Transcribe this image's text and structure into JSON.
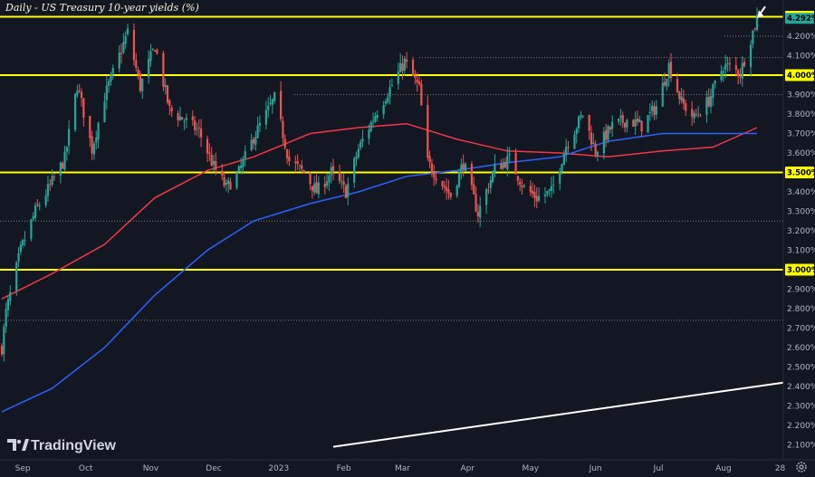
{
  "chart_data": {
    "type": "candlestick",
    "title": "Daily - US Treasury 10-year yields (%)",
    "xlabel": "",
    "ylabel": "",
    "ylim": [
      2.05,
      4.38
    ],
    "grid": false,
    "x_tick_labels": [
      "Sep",
      "Oct",
      "Nov",
      "Dec",
      "2023",
      "Feb",
      "Mar",
      "Apr",
      "May",
      "Jun",
      "Jul",
      "Aug",
      "28"
    ],
    "y_tick_labels": [
      "2.100%",
      "2.200%",
      "2.300%",
      "2.400%",
      "2.500%",
      "2.600%",
      "2.700%",
      "2.800%",
      "2.900%",
      "3.000%",
      "3.100%",
      "3.200%",
      "3.300%",
      "3.400%",
      "3.500%",
      "3.600%",
      "3.700%",
      "3.800%",
      "3.900%",
      "4.000%",
      "4.100%",
      "4.200%",
      "4.300%"
    ],
    "highlighted_levels": [
      "4.300%",
      "4.000%",
      "3.500%",
      "3.000%"
    ],
    "last_price_label": "4.292%",
    "last_price": 4.292,
    "colors": {
      "background": "#131722",
      "up": "#26a69a",
      "down": "#ef5350",
      "level_line": "#ffff00",
      "ma_red": "#f23645",
      "ma_blue": "#2962ff",
      "trendline": "#ffffff",
      "dotted_line": "#787b86"
    },
    "price_anchors": [
      [
        "2022-08-22",
        2.6
      ],
      [
        "2022-08-24",
        2.78
      ],
      [
        "2022-08-31",
        3.1
      ],
      [
        "2022-09-07",
        3.3
      ],
      [
        "2022-09-14",
        3.43
      ],
      [
        "2022-09-21",
        3.57
      ],
      [
        "2022-09-27",
        3.95
      ],
      [
        "2022-10-04",
        3.62
      ],
      [
        "2022-10-10",
        3.89
      ],
      [
        "2022-10-14",
        4.01
      ],
      [
        "2022-10-21",
        4.22
      ],
      [
        "2022-10-27",
        3.94
      ],
      [
        "2022-11-03",
        4.15
      ],
      [
        "2022-11-10",
        3.82
      ],
      [
        "2022-11-17",
        3.77
      ],
      [
        "2022-11-24",
        3.71
      ],
      [
        "2022-12-01",
        3.53
      ],
      [
        "2022-12-07",
        3.42
      ],
      [
        "2022-12-13",
        3.5
      ],
      [
        "2022-12-20",
        3.68
      ],
      [
        "2022-12-30",
        3.88
      ],
      [
        "2023-01-06",
        3.56
      ],
      [
        "2023-01-13",
        3.5
      ],
      [
        "2023-01-19",
        3.4
      ],
      [
        "2023-01-26",
        3.5
      ],
      [
        "2023-02-02",
        3.4
      ],
      [
        "2023-02-08",
        3.62
      ],
      [
        "2023-02-17",
        3.82
      ],
      [
        "2023-02-24",
        3.95
      ],
      [
        "2023-03-02",
        4.07
      ],
      [
        "2023-03-09",
        3.93
      ],
      [
        "2023-03-13",
        3.55
      ],
      [
        "2023-03-24",
        3.38
      ],
      [
        "2023-03-30",
        3.55
      ],
      [
        "2023-04-06",
        3.29
      ],
      [
        "2023-04-14",
        3.52
      ],
      [
        "2023-04-21",
        3.57
      ],
      [
        "2023-04-28",
        3.42
      ],
      [
        "2023-05-04",
        3.37
      ],
      [
        "2023-05-11",
        3.4
      ],
      [
        "2023-05-18",
        3.64
      ],
      [
        "2023-05-26",
        3.8
      ],
      [
        "2023-06-01",
        3.61
      ],
      [
        "2023-06-09",
        3.74
      ],
      [
        "2023-06-16",
        3.77
      ],
      [
        "2023-06-23",
        3.74
      ],
      [
        "2023-06-30",
        3.84
      ],
      [
        "2023-07-06",
        4.05
      ],
      [
        "2023-07-12",
        3.86
      ],
      [
        "2023-07-18",
        3.78
      ],
      [
        "2023-07-25",
        3.87
      ],
      [
        "2023-08-01",
        4.05
      ],
      [
        "2023-08-04",
        4.04
      ],
      [
        "2023-08-09",
        4.01
      ],
      [
        "2023-08-14",
        4.19
      ],
      [
        "2023-08-17",
        4.29
      ]
    ],
    "series": [
      {
        "name": "",
        "type": "line",
        "color": "#f23645",
        "x": [
          "2022-08-22",
          "2022-09-15",
          "2022-10-10",
          "2022-11-03",
          "2022-11-28",
          "2022-12-20",
          "2023-01-16",
          "2023-02-08",
          "2023-03-03",
          "2023-03-27",
          "2023-04-20",
          "2023-05-15",
          "2023-06-07",
          "2023-07-03",
          "2023-07-27",
          "2023-08-17"
        ],
        "y": [
          2.85,
          2.98,
          3.13,
          3.37,
          3.51,
          3.58,
          3.7,
          3.73,
          3.75,
          3.67,
          3.61,
          3.6,
          3.58,
          3.61,
          3.63,
          3.73
        ]
      },
      {
        "name": "",
        "type": "line",
        "color": "#2962ff",
        "x": [
          "2022-08-22",
          "2022-09-15",
          "2022-10-10",
          "2022-11-03",
          "2022-11-28",
          "2022-12-20",
          "2023-01-16",
          "2023-02-08",
          "2023-03-03",
          "2023-03-27",
          "2023-04-20",
          "2023-05-15",
          "2023-06-07",
          "2023-07-03",
          "2023-07-27",
          "2023-08-17"
        ],
        "y": [
          2.27,
          2.39,
          2.6,
          2.87,
          3.1,
          3.25,
          3.34,
          3.4,
          3.48,
          3.51,
          3.55,
          3.58,
          3.66,
          3.7,
          3.7,
          3.7
        ]
      }
    ],
    "trendline": {
      "x": [
        "2023-01-27",
        "2023-08-30"
      ],
      "y": [
        2.09,
        2.42
      ]
    },
    "dotted_levels": [
      4.2,
      4.09,
      3.9,
      3.25,
      2.74
    ],
    "logo": "TradingView"
  }
}
